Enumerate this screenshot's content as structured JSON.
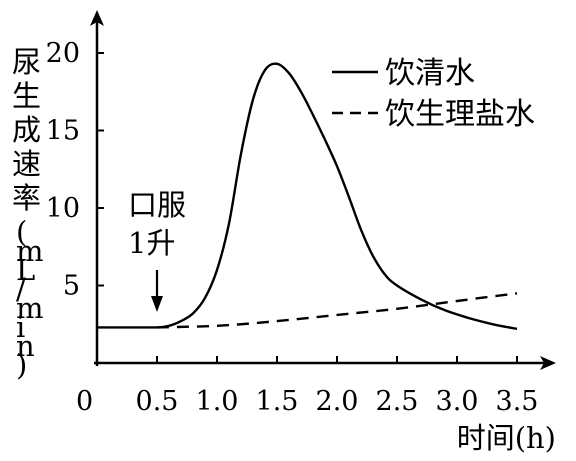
{
  "chart_data": {
    "type": "line",
    "title": "",
    "xlabel": "时间(h)",
    "ylabel": "尿生成速率(mL/min)",
    "xlim": [
      0,
      3.55
    ],
    "ylim": [
      0,
      22
    ],
    "x_ticks": [
      "0.5",
      "1.0",
      "1.5",
      "2.0",
      "2.5",
      "3.0",
      "3.5"
    ],
    "y_ticks": [
      "0",
      "5",
      "10",
      "15",
      "20"
    ],
    "grid": false,
    "legend_position": "top-right",
    "annotation": {
      "line1": "口服",
      "line2": "1升",
      "x": 0.5
    },
    "series": [
      {
        "name": "饮清水",
        "style": "solid",
        "x": [
          0,
          0.25,
          0.5,
          0.6,
          0.7,
          0.8,
          0.9,
          1.0,
          1.1,
          1.2,
          1.3,
          1.4,
          1.5,
          1.6,
          1.7,
          1.8,
          1.9,
          2.0,
          2.1,
          2.2,
          2.3,
          2.4,
          2.5,
          2.7,
          2.9,
          3.1,
          3.3,
          3.5
        ],
        "y": [
          2.3,
          2.3,
          2.3,
          2.4,
          2.7,
          3.2,
          4.2,
          6.0,
          9.0,
          13.5,
          17.0,
          18.9,
          19.3,
          18.7,
          17.5,
          16.0,
          14.4,
          12.7,
          10.7,
          8.6,
          6.9,
          5.7,
          5.0,
          4.1,
          3.4,
          2.9,
          2.5,
          2.2
        ]
      },
      {
        "name": "饮生理盐水",
        "style": "dashed",
        "x": [
          0.5,
          1.0,
          1.5,
          2.0,
          2.5,
          3.0,
          3.5
        ],
        "y": [
          2.3,
          2.4,
          2.7,
          3.1,
          3.5,
          4.0,
          4.5
        ]
      }
    ]
  }
}
